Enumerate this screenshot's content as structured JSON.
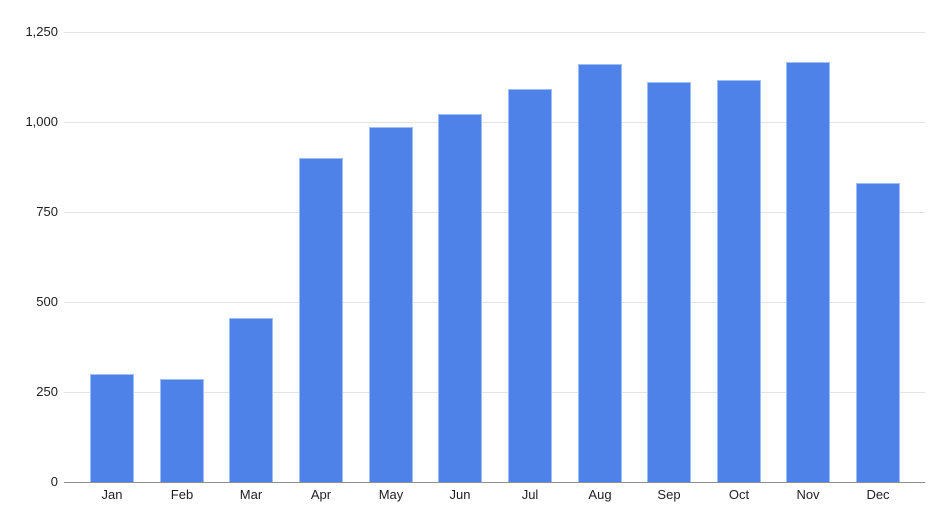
{
  "chart_data": {
    "type": "bar",
    "title": "",
    "categories": [
      "Jan",
      "Feb",
      "Mar",
      "Apr",
      "May",
      "Jun",
      "Jul",
      "Aug",
      "Sep",
      "Oct",
      "Nov",
      "Dec"
    ],
    "values": [
      300,
      285,
      455,
      900,
      985,
      1020,
      1090,
      1160,
      1110,
      1115,
      1165,
      830
    ],
    "xlabel": "",
    "ylabel": "",
    "ylim": [
      0,
      1250
    ],
    "yticks": [
      0,
      250,
      500,
      750,
      1000,
      1250
    ],
    "ytick_labels": [
      "0",
      "250",
      "500",
      "750",
      "1,000",
      "1,250"
    ],
    "grid": true,
    "legend": "none",
    "colors": {
      "bar_fill": "#4e82e9",
      "bar_edge": "#9dbdf4",
      "gridline": "#e3e3e3",
      "axis_line": "#8f8f8f",
      "label": "#1f1f1f",
      "background": "#ffffff"
    }
  }
}
